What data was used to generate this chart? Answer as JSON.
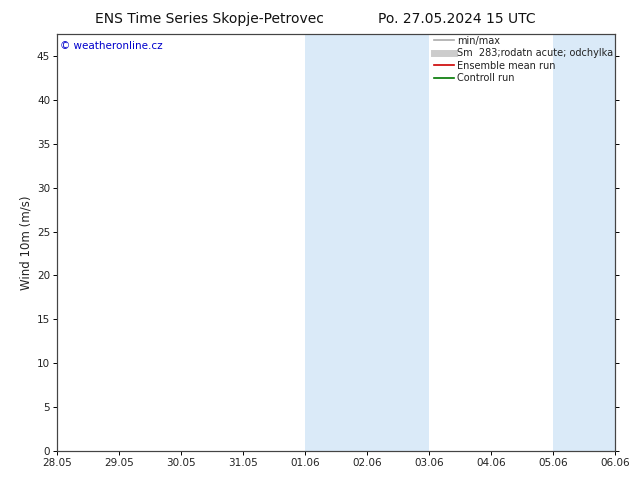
{
  "title_left": "ENS Time Series Skopje-Petrovec",
  "title_right": "Po. 27.05.2024 15 UTC",
  "ylabel": "Wind 10m (m/s)",
  "ylim": [
    0,
    47.5
  ],
  "yticks": [
    0,
    5,
    10,
    15,
    20,
    25,
    30,
    35,
    40,
    45
  ],
  "background_color": "#ffffff",
  "plot_bg_color": "#ffffff",
  "copyright_text": "© weatheronline.cz",
  "copyright_color": "#0000cc",
  "shade_color": "#daeaf8",
  "shade_bands_labels": [
    [
      "01.06",
      "03.06"
    ],
    [
      "05.06",
      "06.06+"
    ]
  ],
  "xtick_labels": [
    "28.05",
    "29.05",
    "30.05",
    "31.05",
    "01.06",
    "02.06",
    "03.06",
    "04.06",
    "05.06",
    "06.06"
  ],
  "legend_entries": [
    {
      "label": "min/max",
      "color": "#aaaaaa",
      "lw": 1.2
    },
    {
      "label": "Sm  283;rodatn acute; odchylka",
      "color": "#cccccc",
      "lw": 5
    },
    {
      "label": "Ensemble mean run",
      "color": "#cc0000",
      "lw": 1.2
    },
    {
      "label": "Controll run",
      "color": "#007700",
      "lw": 1.2
    }
  ],
  "title_fontsize": 10,
  "tick_fontsize": 7.5,
  "ylabel_fontsize": 8.5,
  "legend_fontsize": 7
}
